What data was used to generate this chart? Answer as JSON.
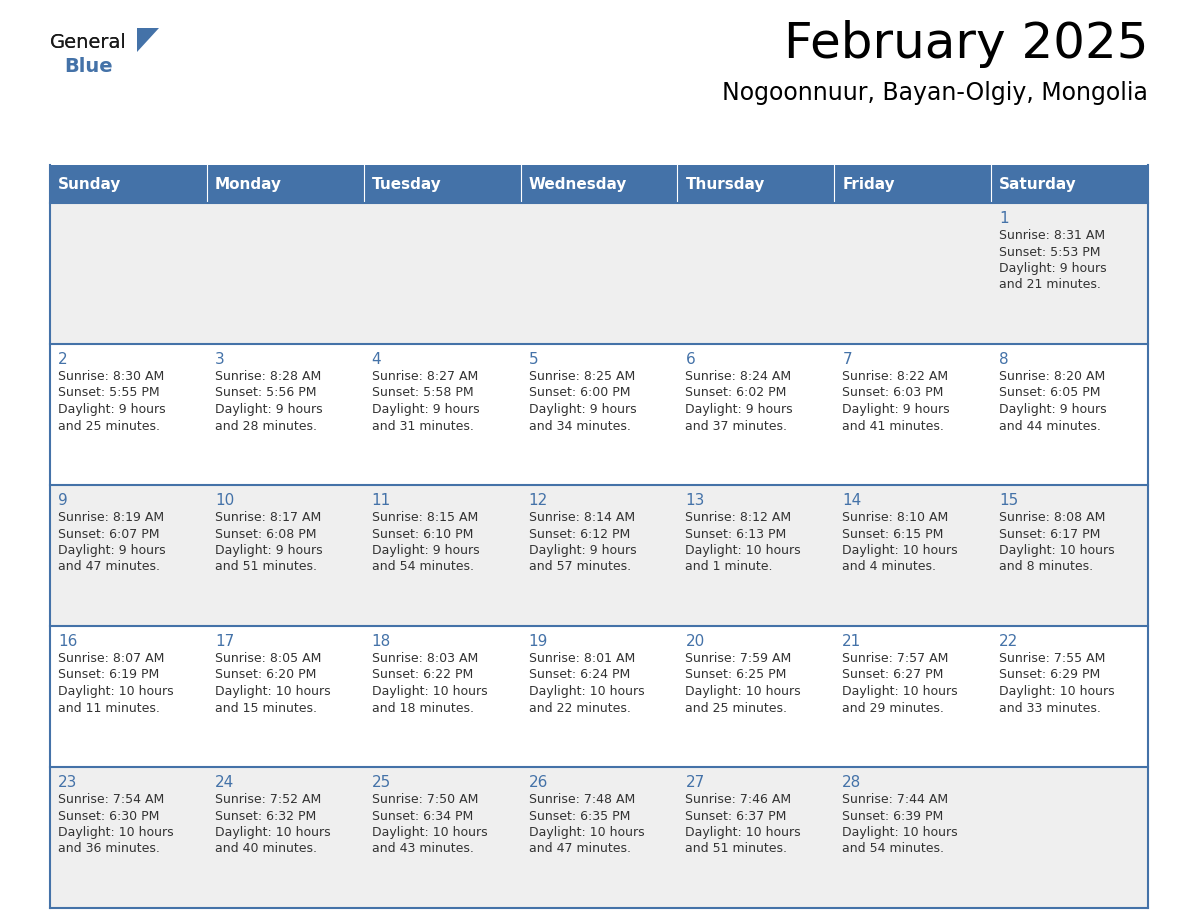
{
  "title": "February 2025",
  "subtitle": "Nogoonnuur, Bayan-Olgiy, Mongolia",
  "header_bg": "#4472A8",
  "header_text_color": "#FFFFFF",
  "cell_bg_even": "#EFEFEF",
  "cell_bg_odd": "#FFFFFF",
  "day_number_color": "#4472A8",
  "text_color": "#333333",
  "border_color": "#4472A8",
  "days_of_week": [
    "Sunday",
    "Monday",
    "Tuesday",
    "Wednesday",
    "Thursday",
    "Friday",
    "Saturday"
  ],
  "weeks": [
    [
      {
        "day": null,
        "sunrise": null,
        "sunset": null,
        "daylight": null
      },
      {
        "day": null,
        "sunrise": null,
        "sunset": null,
        "daylight": null
      },
      {
        "day": null,
        "sunrise": null,
        "sunset": null,
        "daylight": null
      },
      {
        "day": null,
        "sunrise": null,
        "sunset": null,
        "daylight": null
      },
      {
        "day": null,
        "sunrise": null,
        "sunset": null,
        "daylight": null
      },
      {
        "day": null,
        "sunrise": null,
        "sunset": null,
        "daylight": null
      },
      {
        "day": 1,
        "sunrise": "8:31 AM",
        "sunset": "5:53 PM",
        "daylight": "9 hours and 21 minutes."
      }
    ],
    [
      {
        "day": 2,
        "sunrise": "8:30 AM",
        "sunset": "5:55 PM",
        "daylight": "9 hours and 25 minutes."
      },
      {
        "day": 3,
        "sunrise": "8:28 AM",
        "sunset": "5:56 PM",
        "daylight": "9 hours and 28 minutes."
      },
      {
        "day": 4,
        "sunrise": "8:27 AM",
        "sunset": "5:58 PM",
        "daylight": "9 hours and 31 minutes."
      },
      {
        "day": 5,
        "sunrise": "8:25 AM",
        "sunset": "6:00 PM",
        "daylight": "9 hours and 34 minutes."
      },
      {
        "day": 6,
        "sunrise": "8:24 AM",
        "sunset": "6:02 PM",
        "daylight": "9 hours and 37 minutes."
      },
      {
        "day": 7,
        "sunrise": "8:22 AM",
        "sunset": "6:03 PM",
        "daylight": "9 hours and 41 minutes."
      },
      {
        "day": 8,
        "sunrise": "8:20 AM",
        "sunset": "6:05 PM",
        "daylight": "9 hours and 44 minutes."
      }
    ],
    [
      {
        "day": 9,
        "sunrise": "8:19 AM",
        "sunset": "6:07 PM",
        "daylight": "9 hours and 47 minutes."
      },
      {
        "day": 10,
        "sunrise": "8:17 AM",
        "sunset": "6:08 PM",
        "daylight": "9 hours and 51 minutes."
      },
      {
        "day": 11,
        "sunrise": "8:15 AM",
        "sunset": "6:10 PM",
        "daylight": "9 hours and 54 minutes."
      },
      {
        "day": 12,
        "sunrise": "8:14 AM",
        "sunset": "6:12 PM",
        "daylight": "9 hours and 57 minutes."
      },
      {
        "day": 13,
        "sunrise": "8:12 AM",
        "sunset": "6:13 PM",
        "daylight": "10 hours and 1 minute."
      },
      {
        "day": 14,
        "sunrise": "8:10 AM",
        "sunset": "6:15 PM",
        "daylight": "10 hours and 4 minutes."
      },
      {
        "day": 15,
        "sunrise": "8:08 AM",
        "sunset": "6:17 PM",
        "daylight": "10 hours and 8 minutes."
      }
    ],
    [
      {
        "day": 16,
        "sunrise": "8:07 AM",
        "sunset": "6:19 PM",
        "daylight": "10 hours and 11 minutes."
      },
      {
        "day": 17,
        "sunrise": "8:05 AM",
        "sunset": "6:20 PM",
        "daylight": "10 hours and 15 minutes."
      },
      {
        "day": 18,
        "sunrise": "8:03 AM",
        "sunset": "6:22 PM",
        "daylight": "10 hours and 18 minutes."
      },
      {
        "day": 19,
        "sunrise": "8:01 AM",
        "sunset": "6:24 PM",
        "daylight": "10 hours and 22 minutes."
      },
      {
        "day": 20,
        "sunrise": "7:59 AM",
        "sunset": "6:25 PM",
        "daylight": "10 hours and 25 minutes."
      },
      {
        "day": 21,
        "sunrise": "7:57 AM",
        "sunset": "6:27 PM",
        "daylight": "10 hours and 29 minutes."
      },
      {
        "day": 22,
        "sunrise": "7:55 AM",
        "sunset": "6:29 PM",
        "daylight": "10 hours and 33 minutes."
      }
    ],
    [
      {
        "day": 23,
        "sunrise": "7:54 AM",
        "sunset": "6:30 PM",
        "daylight": "10 hours and 36 minutes."
      },
      {
        "day": 24,
        "sunrise": "7:52 AM",
        "sunset": "6:32 PM",
        "daylight": "10 hours and 40 minutes."
      },
      {
        "day": 25,
        "sunrise": "7:50 AM",
        "sunset": "6:34 PM",
        "daylight": "10 hours and 43 minutes."
      },
      {
        "day": 26,
        "sunrise": "7:48 AM",
        "sunset": "6:35 PM",
        "daylight": "10 hours and 47 minutes."
      },
      {
        "day": 27,
        "sunrise": "7:46 AM",
        "sunset": "6:37 PM",
        "daylight": "10 hours and 51 minutes."
      },
      {
        "day": 28,
        "sunrise": "7:44 AM",
        "sunset": "6:39 PM",
        "daylight": "10 hours and 54 minutes."
      },
      {
        "day": null,
        "sunrise": null,
        "sunset": null,
        "daylight": null
      }
    ]
  ],
  "logo_color_general": "#1a1a1a",
  "logo_color_blue": "#4472A8",
  "logo_triangle_color": "#4472A8",
  "title_fontsize": 36,
  "subtitle_fontsize": 17,
  "header_fontsize": 11,
  "day_num_fontsize": 11,
  "cell_text_fontsize": 9
}
